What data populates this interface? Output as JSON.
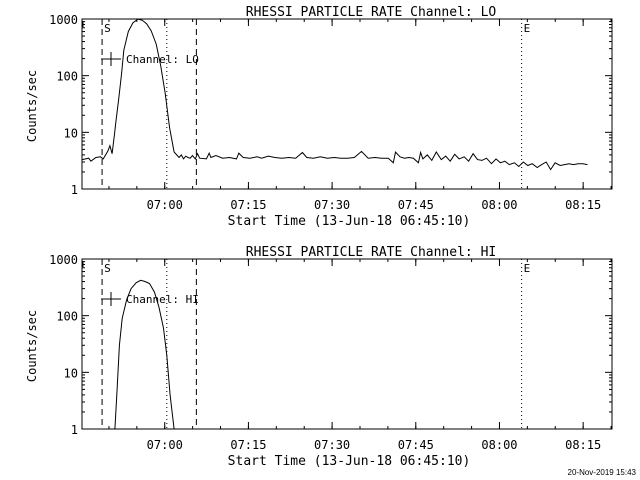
{
  "chart_data": [
    {
      "type": "line",
      "title": "RHESSI PARTICLE_RATE Channel: LO",
      "xlabel": "Start Time (13-Jun-18 06:45:10)",
      "ylabel": "Counts/sec",
      "yscale": "log",
      "ylim": [
        1,
        1000
      ],
      "xlim_minutes_from_start": [
        0,
        95
      ],
      "x_ticks": [
        "07:00",
        "07:15",
        "07:30",
        "07:45",
        "08:00",
        "08:15"
      ],
      "y_ticks": [
        "1",
        "10",
        "100",
        "1000"
      ],
      "legend": "Channel: LO",
      "legend_position": "top-left",
      "markers": [
        {
          "label": "S",
          "style": "dashed"
        },
        {
          "label": "",
          "style": "dotted"
        },
        {
          "label": "",
          "style": "dashed"
        },
        {
          "label": "E",
          "style": "dotted"
        },
        {
          "label": "",
          "style": "dotted"
        }
      ],
      "series": [
        {
          "x": [
            0.0,
            1.2,
            1.6,
            2.5,
            3.3,
            3.8,
            4.6,
            5.0,
            5.4,
            5.8,
            6.1,
            6.6,
            7.1,
            7.5,
            8.3,
            9.1,
            10.0,
            10.8,
            11.6,
            12.4,
            13.3,
            14.1,
            14.9,
            15.7,
            16.5,
            17.4,
            17.8,
            18.2,
            18.6,
            19.0,
            19.4,
            19.8,
            20.3,
            20.7,
            21.1,
            22.3,
            22.8,
            23.1,
            24.0,
            25.2,
            26.4,
            27.7,
            28.1,
            28.9,
            30.1,
            31.4,
            32.2,
            33.4,
            34.6,
            35.8,
            37.1,
            38.3,
            39.5,
            40.3,
            41.5,
            42.7,
            44.0,
            45.2,
            46.4,
            47.6,
            48.8,
            50.1,
            51.3,
            52.5,
            53.7,
            54.9,
            55.8,
            56.2,
            57.0,
            57.8,
            58.6,
            59.4,
            60.3,
            60.7,
            61.1,
            61.9,
            62.7,
            63.5,
            64.4,
            65.2,
            66.0,
            66.8,
            67.6,
            68.5,
            69.3,
            70.1,
            70.9,
            71.7,
            72.5,
            73.4,
            74.2,
            75.0,
            75.8,
            76.6,
            77.5,
            78.3,
            79.1,
            79.9,
            80.7,
            81.6,
            82.4,
            83.2,
            84.0,
            84.8,
            85.7,
            86.5,
            87.3,
            88.1,
            88.9,
            89.8,
            90.6
          ],
          "y": [
            3.3,
            3.5,
            3.1,
            3.6,
            3.7,
            3.4,
            4.6,
            5.8,
            4.2,
            9,
            16,
            40,
            110,
            280,
            600,
            850,
            990,
            950,
            820,
            620,
            360,
            150,
            50,
            12,
            4.5,
            3.6,
            4.0,
            3.4,
            3.8,
            3.6,
            3.5,
            3.9,
            3.4,
            4.2,
            3.5,
            3.4,
            4.3,
            3.6,
            3.9,
            3.5,
            3.6,
            3.4,
            4.3,
            3.6,
            3.5,
            3.7,
            3.5,
            3.8,
            3.6,
            3.5,
            3.6,
            3.5,
            4.4,
            3.6,
            3.5,
            3.7,
            3.5,
            3.6,
            3.5,
            3.5,
            3.6,
            4.6,
            3.5,
            3.6,
            3.5,
            3.5,
            2.9,
            4.5,
            3.7,
            3.5,
            3.6,
            3.5,
            2.9,
            4.4,
            3.4,
            4.0,
            3.2,
            4.5,
            3.3,
            3.8,
            3.1,
            4.1,
            3.4,
            3.7,
            3.1,
            4.2,
            3.3,
            3.2,
            3.5,
            2.8,
            3.4,
            2.9,
            3.1,
            2.7,
            2.9,
            2.5,
            3.0,
            2.6,
            2.8,
            2.4,
            2.7,
            3.0,
            2.2,
            2.9,
            2.6,
            2.7,
            2.8,
            2.7,
            2.8,
            2.8,
            2.7
          ]
        }
      ]
    },
    {
      "type": "line",
      "title": "RHESSI PARTICLE_RATE Channel: HI",
      "xlabel": "Start Time (13-Jun-18 06:45:10)",
      "ylabel": "Counts/sec",
      "yscale": "log",
      "ylim": [
        1,
        1000
      ],
      "xlim_minutes_from_start": [
        0,
        95
      ],
      "x_ticks": [
        "07:00",
        "07:15",
        "07:30",
        "07:45",
        "08:00",
        "08:15"
      ],
      "y_ticks": [
        "1",
        "10",
        "100",
        "1000"
      ],
      "legend": "Channel: HI",
      "legend_position": "top-left",
      "markers": [
        {
          "label": "S",
          "style": "dashed"
        },
        {
          "label": "",
          "style": "dotted"
        },
        {
          "label": "",
          "style": "dashed"
        },
        {
          "label": "E",
          "style": "dotted"
        },
        {
          "label": "",
          "style": "dotted"
        }
      ],
      "series": [
        {
          "x": [
            5.9,
            6.3,
            6.7,
            7.2,
            8.0,
            8.8,
            9.7,
            10.5,
            11.3,
            12.1,
            13.0,
            13.8,
            14.6,
            15.2,
            15.8,
            16.5
          ],
          "y": [
            1,
            5,
            30,
            90,
            190,
            300,
            380,
            420,
            400,
            370,
            260,
            140,
            60,
            20,
            4,
            1
          ]
        }
      ]
    }
  ],
  "timestamp": "20-Nov-2019 15:43"
}
